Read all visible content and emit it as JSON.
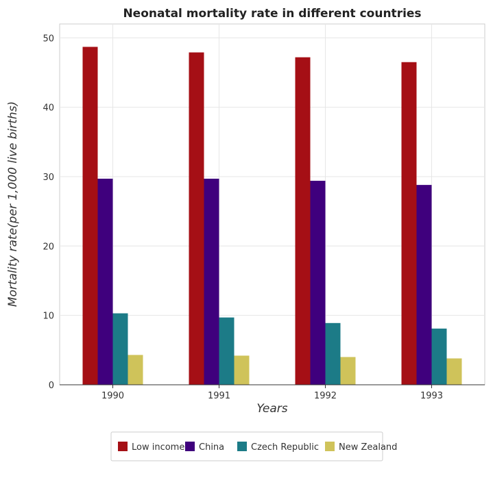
{
  "chart_data": {
    "type": "bar",
    "title": "Neonatal mortality rate in different countries",
    "xlabel": "Years",
    "ylabel": "Mortality rate(per 1,000 live births)",
    "categories": [
      "1990",
      "1991",
      "1992",
      "1993"
    ],
    "ylim": [
      0,
      52
    ],
    "yticks": [
      0,
      10,
      20,
      30,
      40,
      50
    ],
    "grid": true,
    "legend_position": "bottom",
    "series": [
      {
        "name": "Low income",
        "color": "#a50f15",
        "values": [
          48.7,
          47.9,
          47.2,
          46.5
        ]
      },
      {
        "name": "China",
        "color": "#3f007d",
        "values": [
          29.7,
          29.7,
          29.4,
          28.8
        ]
      },
      {
        "name": "Czech Republic",
        "color": "#1c7b87",
        "values": [
          10.3,
          9.7,
          8.9,
          8.1
        ]
      },
      {
        "name": "New Zealand",
        "color": "#cfc35a",
        "values": [
          4.3,
          4.2,
          4.0,
          3.8
        ]
      }
    ]
  }
}
